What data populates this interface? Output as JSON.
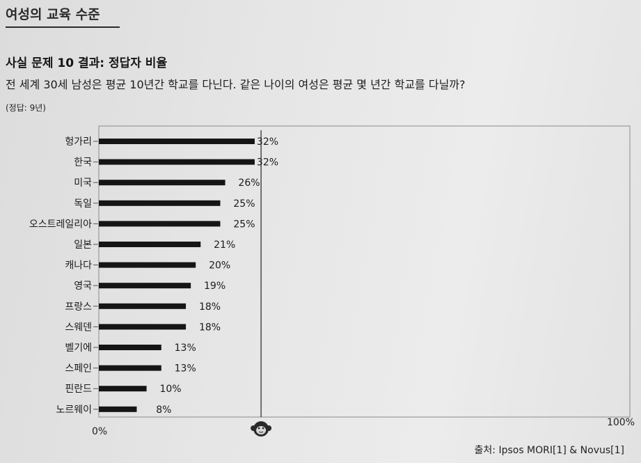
{
  "header": {
    "section_title": "여성의 교육 수준"
  },
  "chart_data": {
    "type": "bar",
    "orientation": "horizontal",
    "title": "사실 문제 10 결과: 정답자 비율",
    "subtitle": "전 세계 30세 남성은 평균 10년간 학교를 다닌다. 같은 나이의 여성은 평균 몇 년간 학교를 다닐까?",
    "note": "(정답: 9년)",
    "categories": [
      "헝가리",
      "한국",
      "미국",
      "독일",
      "오스트레일리아",
      "일본",
      "캐나다",
      "영국",
      "프랑스",
      "스웨덴",
      "벨기에",
      "스페인",
      "핀란드",
      "노르웨이"
    ],
    "values": [
      32,
      32,
      26,
      25,
      25,
      21,
      20,
      19,
      18,
      18,
      13,
      13,
      10,
      8
    ],
    "value_labels": [
      "32%",
      "32%",
      "26%",
      "25%",
      "25%",
      "21%",
      "20%",
      "19%",
      "18%",
      "18%",
      "13%",
      "13%",
      "10%",
      "8%"
    ],
    "xlim": [
      0,
      100
    ],
    "x_tick_labels": [
      "0%",
      "100%"
    ],
    "reference_line": 33.3,
    "bar_color": "#151515",
    "grid": false,
    "legend": "none"
  },
  "footer": {
    "source": "출처: Ipsos MORI[1] & Novus[1]"
  }
}
